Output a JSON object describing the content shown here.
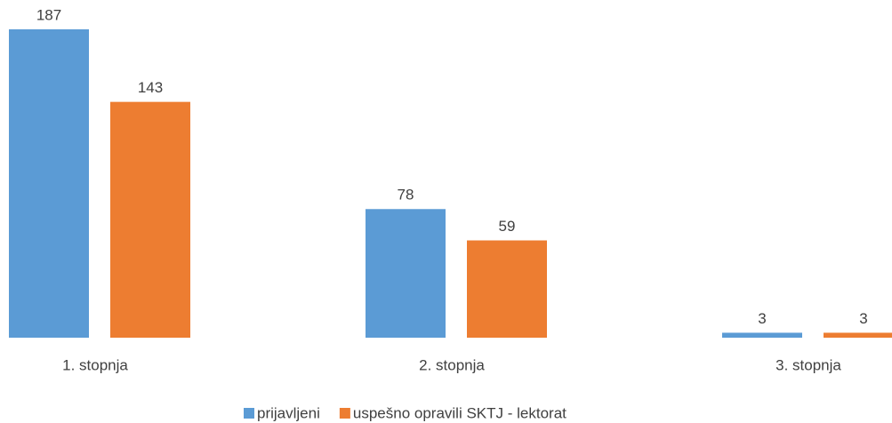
{
  "chart_data": {
    "type": "bar",
    "categories": [
      "1. stopnja",
      "2. stopnja",
      "3. stopnja"
    ],
    "series": [
      {
        "name": "prijavljeni",
        "color": "#5b9bd5",
        "values": [
          187,
          78,
          3
        ]
      },
      {
        "name": "uspešno opravili SKTJ - lektorat",
        "color": "#ed7d31",
        "values": [
          143,
          59,
          3
        ]
      }
    ],
    "legend": "bottom"
  }
}
